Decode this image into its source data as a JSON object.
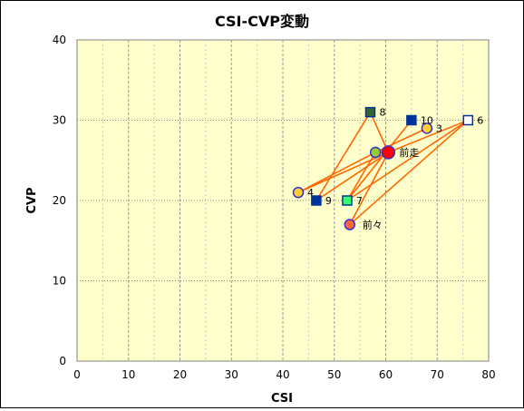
{
  "chart_data": {
    "type": "scatter",
    "title": "CSI-CVP変動",
    "xlabel": "CSI",
    "ylabel": "CVP",
    "xlim": [
      0,
      80
    ],
    "ylim": [
      0,
      40
    ],
    "x_ticks": [
      0,
      10,
      20,
      30,
      40,
      50,
      60,
      70,
      80
    ],
    "y_ticks": [
      0,
      10,
      20,
      30,
      40
    ],
    "grid": "x minor 5 dashed, y major 10 dotted",
    "plot_background": "#FFFFCC",
    "line_color": "#FF6600",
    "points": [
      {
        "label": "前々",
        "x": 53,
        "y": 17,
        "shape": "circle",
        "fill": "#FF6633",
        "stroke": "#3333CC",
        "label_dx": 14,
        "label_dy": 4
      },
      {
        "label": "3",
        "x": 68,
        "y": 29,
        "shape": "circle",
        "fill": "#FFCC33",
        "stroke": "#3333CC",
        "label_dx": 10,
        "label_dy": 4
      },
      {
        "label": "4",
        "x": 43,
        "y": 21,
        "shape": "circle",
        "fill": "#FFCC33",
        "stroke": "#3333CC",
        "label_dx": 10,
        "label_dy": 4
      },
      {
        "label": "",
        "x": 58,
        "y": 26,
        "shape": "circle",
        "fill": "#99CC33",
        "stroke": "#3333CC",
        "label_dx": 0,
        "label_dy": 0
      },
      {
        "label": "9",
        "x": 46.5,
        "y": 20,
        "shape": "square",
        "fill": "#003399",
        "stroke": "#003399",
        "label_dx": 10,
        "label_dy": 4
      },
      {
        "label": "8",
        "x": 57,
        "y": 31,
        "shape": "square",
        "fill": "#336633",
        "stroke": "#003399",
        "label_dx": 10,
        "label_dy": 4
      },
      {
        "label": "10",
        "x": 65,
        "y": 30,
        "shape": "square",
        "fill": "#003399",
        "stroke": "#003399",
        "label_dx": 10,
        "label_dy": 4
      },
      {
        "label": "7",
        "x": 52.5,
        "y": 20,
        "shape": "square",
        "fill": "#33FF66",
        "stroke": "#003399",
        "label_dx": 10,
        "label_dy": 4
      },
      {
        "label": "6",
        "x": 76,
        "y": 30,
        "shape": "square",
        "fill": "#FFFFFF",
        "stroke": "#003399",
        "label_dx": 10,
        "label_dy": 4
      },
      {
        "label": "前走",
        "x": 60.5,
        "y": 26,
        "shape": "circle-large",
        "fill": "#FF0000",
        "stroke": "#3333CC",
        "label_dx": 12,
        "label_dy": 4
      }
    ],
    "connections": [
      [
        60.5,
        26,
        43,
        21
      ],
      [
        60.5,
        26,
        46.5,
        20
      ],
      [
        60.5,
        26,
        76,
        30
      ],
      [
        60.5,
        26,
        53,
        17
      ],
      [
        58,
        26,
        68,
        29
      ],
      [
        58,
        26,
        52.5,
        20
      ],
      [
        57,
        31,
        46.5,
        20
      ],
      [
        57,
        31,
        60.5,
        26
      ],
      [
        65,
        30,
        52.5,
        20
      ],
      [
        76,
        30,
        53,
        17
      ],
      [
        76,
        30,
        52.5,
        20
      ],
      [
        43,
        21,
        58,
        26
      ]
    ]
  }
}
